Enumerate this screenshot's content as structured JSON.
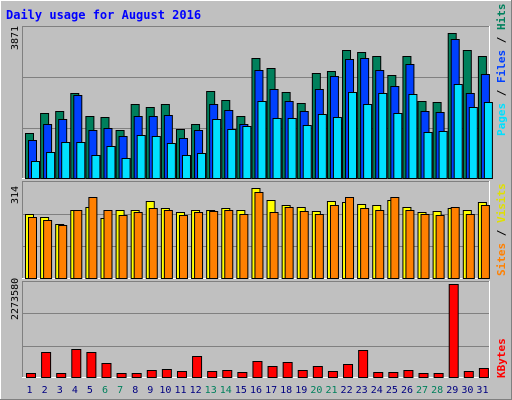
{
  "title": "Daily usage for August 2016",
  "colors": {
    "background": "#c0c0c0",
    "title": "#0000ff",
    "hits": "#00805c",
    "files": "#0040ff",
    "pages": "#00e0ff",
    "visits": "#ffff00",
    "sites": "#ff8000",
    "kbytes": "#ff0000",
    "weekend_label": "#00805c",
    "weekday_label": "#000080"
  },
  "chart_data": [
    {
      "type": "bar",
      "panel": "hits-files-pages",
      "max_label": "3871",
      "ylim": [
        0,
        3871
      ],
      "grid": true,
      "categories": [
        "1",
        "2",
        "3",
        "4",
        "5",
        "6",
        "7",
        "8",
        "9",
        "10",
        "11",
        "12",
        "13",
        "14",
        "15",
        "16",
        "17",
        "18",
        "19",
        "20",
        "21",
        "22",
        "23",
        "24",
        "25",
        "26",
        "27",
        "28",
        "29",
        "30",
        "31"
      ],
      "side_label": [
        "Pages",
        "Files",
        "Hits"
      ],
      "series": [
        {
          "name": "Hits",
          "values": [
            1180,
            1680,
            1730,
            2200,
            1620,
            1580,
            1250,
            1920,
            1850,
            1910,
            1270,
            1410,
            2250,
            2020,
            1600,
            3130,
            2850,
            2230,
            1960,
            2740,
            2790,
            3330,
            3280,
            3170,
            2680,
            3160,
            2010,
            1970,
            3760,
            3330,
            3170
          ]
        },
        {
          "name": "Files",
          "values": [
            980,
            1410,
            1520,
            2150,
            1260,
            1290,
            1080,
            1600,
            1600,
            1640,
            1030,
            1260,
            1930,
            1760,
            1390,
            2810,
            2300,
            2000,
            1750,
            2300,
            2660,
            3080,
            3130,
            2810,
            2390,
            2970,
            1740,
            1710,
            3620,
            2210,
            2710
          ]
        },
        {
          "name": "Pages",
          "values": [
            450,
            670,
            940,
            940,
            590,
            840,
            530,
            1110,
            1080,
            900,
            600,
            660,
            1530,
            1270,
            1340,
            1990,
            1570,
            1550,
            1370,
            1660,
            1590,
            2230,
            1930,
            2210,
            1690,
            2170,
            1190,
            1230,
            2450,
            1850,
            1980
          ]
        }
      ]
    },
    {
      "type": "bar",
      "panel": "visits-sites",
      "max_label": "314",
      "ylim": [
        0,
        314
      ],
      "grid": true,
      "categories": [
        "1",
        "2",
        "3",
        "4",
        "5",
        "6",
        "7",
        "8",
        "9",
        "10",
        "11",
        "12",
        "13",
        "14",
        "15",
        "16",
        "17",
        "18",
        "19",
        "20",
        "21",
        "22",
        "23",
        "24",
        "25",
        "26",
        "27",
        "28",
        "29",
        "30",
        "31"
      ],
      "side_label": [
        "Sites",
        "Visits"
      ],
      "series": [
        {
          "name": "Visits",
          "values": [
            225,
            215,
            190,
            240,
            250,
            210,
            240,
            240,
            270,
            245,
            230,
            240,
            240,
            245,
            240,
            317,
            275,
            255,
            250,
            235,
            270,
            265,
            260,
            255,
            275,
            250,
            230,
            235,
            245,
            240,
            265
          ]
        },
        {
          "name": "Sites",
          "values": [
            215,
            205,
            185,
            240,
            285,
            240,
            220,
            230,
            245,
            240,
            220,
            230,
            235,
            240,
            225,
            300,
            230,
            250,
            235,
            225,
            255,
            285,
            245,
            240,
            285,
            240,
            225,
            220,
            250,
            225,
            255
          ]
        }
      ]
    },
    {
      "type": "bar",
      "panel": "kbytes",
      "max_label": "2273580",
      "ylim": [
        0,
        2273580
      ],
      "grid": true,
      "categories": [
        "1",
        "2",
        "3",
        "4",
        "5",
        "6",
        "7",
        "8",
        "9",
        "10",
        "11",
        "12",
        "13",
        "14",
        "15",
        "16",
        "17",
        "18",
        "19",
        "20",
        "21",
        "22",
        "23",
        "24",
        "25",
        "26",
        "27",
        "28",
        "29",
        "30",
        "31"
      ],
      "side_label": [
        "KBytes"
      ],
      "series": [
        {
          "name": "KBytes",
          "values": [
            95000,
            600000,
            95000,
            680000,
            600000,
            350000,
            100000,
            100000,
            180000,
            190000,
            150000,
            520000,
            150000,
            160000,
            130000,
            400000,
            260000,
            360000,
            160000,
            280000,
            150000,
            320000,
            650000,
            130000,
            130000,
            160000,
            90000,
            90000,
            2273580,
            145000,
            210000
          ]
        }
      ]
    }
  ],
  "x_labels": [
    {
      "text": "1",
      "weekend": false
    },
    {
      "text": "2",
      "weekend": false
    },
    {
      "text": "3",
      "weekend": false
    },
    {
      "text": "4",
      "weekend": false
    },
    {
      "text": "5",
      "weekend": false
    },
    {
      "text": "6",
      "weekend": true
    },
    {
      "text": "7",
      "weekend": true
    },
    {
      "text": "8",
      "weekend": false
    },
    {
      "text": "9",
      "weekend": false
    },
    {
      "text": "10",
      "weekend": false
    },
    {
      "text": "11",
      "weekend": false
    },
    {
      "text": "12",
      "weekend": false
    },
    {
      "text": "13",
      "weekend": true
    },
    {
      "text": "14",
      "weekend": true
    },
    {
      "text": "15",
      "weekend": false
    },
    {
      "text": "16",
      "weekend": false
    },
    {
      "text": "17",
      "weekend": false
    },
    {
      "text": "18",
      "weekend": false
    },
    {
      "text": "19",
      "weekend": false
    },
    {
      "text": "20",
      "weekend": true
    },
    {
      "text": "21",
      "weekend": true
    },
    {
      "text": "22",
      "weekend": false
    },
    {
      "text": "23",
      "weekend": false
    },
    {
      "text": "24",
      "weekend": false
    },
    {
      "text": "25",
      "weekend": false
    },
    {
      "text": "26",
      "weekend": false
    },
    {
      "text": "27",
      "weekend": true
    },
    {
      "text": "28",
      "weekend": true
    },
    {
      "text": "29",
      "weekend": false
    },
    {
      "text": "30",
      "weekend": false
    },
    {
      "text": "31",
      "weekend": false
    }
  ]
}
